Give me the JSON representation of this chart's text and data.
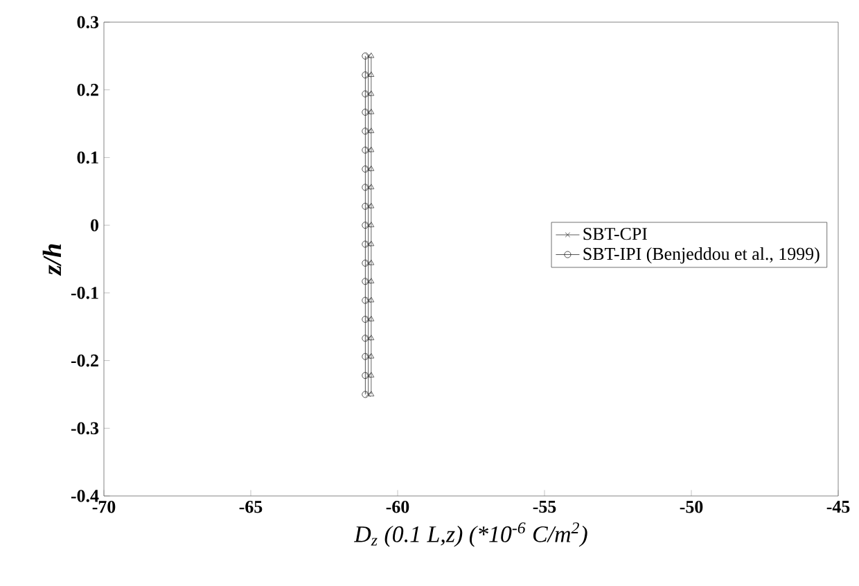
{
  "chart_data": {
    "type": "line",
    "xlabel": "D$_{z}$ (0.1 L,z) (*10$^{-6}$ C/m$^{2}$)",
    "ylabel": "z/h",
    "series": [
      {
        "name": "SBT-CPI",
        "color": "#333333",
        "marker": "cross",
        "x": [
          -61.0,
          -61.0,
          -61.0,
          -61.0,
          -61.0,
          -61.0,
          -61.0,
          -61.0,
          -61.0,
          -61.0,
          -61.0,
          -61.0,
          -61.0,
          -61.0,
          -61.0,
          -61.0,
          -61.0,
          -61.0,
          -61.0
        ],
        "values": [
          0.25,
          0.222,
          0.194,
          0.167,
          0.139,
          0.111,
          0.083,
          0.056,
          0.028,
          0.0,
          -0.028,
          -0.056,
          -0.083,
          -0.111,
          -0.139,
          -0.167,
          -0.194,
          -0.222,
          -0.25
        ]
      },
      {
        "name": "SBT-IPI (Benjeddou et al., 1999)",
        "color": "#262626",
        "marker": "circle",
        "x": [
          -61.1,
          -61.1,
          -61.1,
          -61.1,
          -61.1,
          -61.1,
          -61.1,
          -61.1,
          -61.1,
          -61.1,
          -61.1,
          -61.1,
          -61.1,
          -61.1,
          -61.1,
          -61.1,
          -61.1,
          -61.1,
          -61.1
        ],
        "values": [
          0.25,
          0.222,
          0.194,
          0.167,
          0.139,
          0.111,
          0.083,
          0.056,
          0.028,
          0.0,
          -0.028,
          -0.056,
          -0.083,
          -0.111,
          -0.139,
          -0.167,
          -0.194,
          -0.222,
          -0.25
        ]
      },
      {
        "color": "#404040",
        "marker": "triangle",
        "x": [
          -60.9,
          -60.9,
          -60.9,
          -60.9,
          -60.9,
          -60.9,
          -60.9,
          -60.9,
          -60.9,
          -60.9,
          -60.9,
          -60.9,
          -60.9,
          -60.9,
          -60.9,
          -60.9,
          -60.9,
          -60.9,
          -60.9
        ],
        "values": [
          0.25,
          0.222,
          0.194,
          0.167,
          0.139,
          0.111,
          0.083,
          0.056,
          0.028,
          0.0,
          -0.028,
          -0.056,
          -0.083,
          -0.111,
          -0.139,
          -0.167,
          -0.194,
          -0.222,
          -0.25
        ]
      }
    ],
    "xlim": [
      -70,
      -45
    ],
    "xticks": [
      -70,
      -65,
      -60,
      -55,
      -50,
      -45
    ],
    "ylim": [
      -0.4,
      0.3
    ],
    "yticks": [
      -0.4,
      -0.3,
      -0.2,
      -0.1,
      0,
      0.1,
      0.2,
      0.3
    ],
    "legend": "right",
    "grid": false,
    "line_style": "solid"
  }
}
